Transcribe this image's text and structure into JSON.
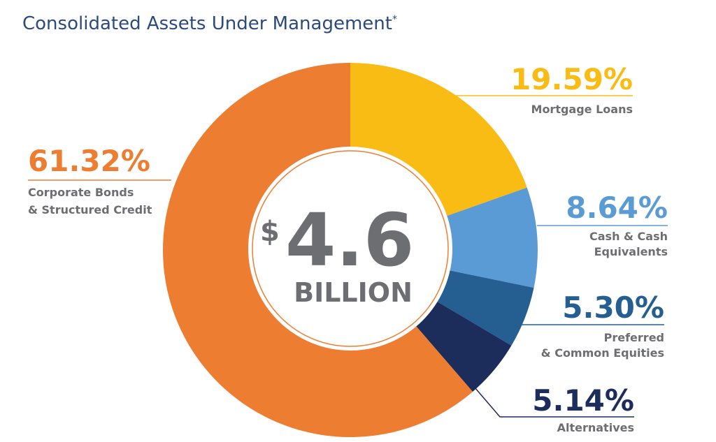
{
  "chart_data": {
    "type": "pie",
    "variant": "donut",
    "title": "Consolidated Assets Under Management",
    "title_mark": "*",
    "center_label": {
      "currency": "$",
      "value": "4.6",
      "unit": "BILLION"
    },
    "slices": [
      {
        "label_lines": [
          "Mortgage Loans"
        ],
        "value": 19.59,
        "display": "19.59%",
        "color": "#f9bc15"
      },
      {
        "label_lines": [
          "Cash & Cash",
          "Equivalents"
        ],
        "value": 8.64,
        "display": "8.64%",
        "color": "#5b9bd5"
      },
      {
        "label_lines": [
          "Preferred",
          "& Common Equities"
        ],
        "value": 5.3,
        "display": "5.30%",
        "color": "#255e91"
      },
      {
        "label_lines": [
          "Alternatives"
        ],
        "value": 5.14,
        "display": "5.14%",
        "color": "#1c2c5b"
      },
      {
        "label_lines": [
          "Corporate Bonds",
          "& Structured Credit"
        ],
        "value": 61.32,
        "display": "61.32%",
        "color": "#ed7d31"
      }
    ]
  }
}
